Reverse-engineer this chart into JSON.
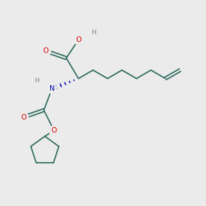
{
  "background_color": "#ebebeb",
  "bond_color": "#2d6b5e",
  "atom_colors": {
    "O": "#dd0000",
    "N": "#0000bb",
    "H": "#7a7a7a",
    "C": "#2d6b5e"
  },
  "figsize": [
    3.0,
    3.0
  ],
  "dpi": 100,
  "xlim": [
    0,
    10
  ],
  "ylim": [
    0,
    10
  ]
}
